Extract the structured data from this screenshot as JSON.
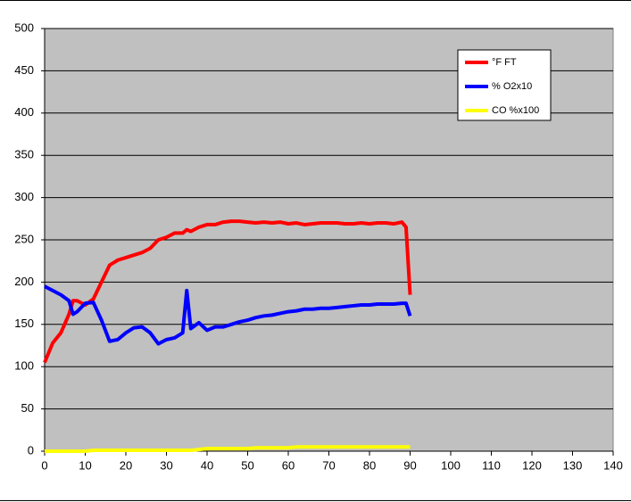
{
  "chart_data": {
    "type": "line",
    "x": [
      0,
      2,
      4,
      6,
      7,
      8,
      10,
      12,
      14,
      16,
      18,
      20,
      22,
      24,
      26,
      28,
      30,
      32,
      34,
      35,
      36,
      38,
      40,
      42,
      44,
      46,
      48,
      50,
      52,
      54,
      56,
      58,
      60,
      62,
      64,
      66,
      68,
      70,
      72,
      74,
      76,
      78,
      80,
      82,
      84,
      86,
      88,
      89,
      90
    ],
    "series": [
      {
        "name": "°F FT",
        "color": "#ff0000",
        "values": [
          105,
          128,
          140,
          162,
          178,
          178,
          173,
          180,
          200,
          220,
          226,
          229,
          232,
          235,
          240,
          250,
          253,
          258,
          258,
          262,
          260,
          265,
          268,
          268,
          271,
          272,
          272,
          271,
          270,
          271,
          270,
          271,
          269,
          270,
          268,
          269,
          270,
          270,
          270,
          269,
          269,
          270,
          269,
          270,
          270,
          269,
          271,
          265,
          185
        ]
      },
      {
        "name": "% O2x10",
        "color": "#0000ff",
        "values": [
          195,
          190,
          185,
          178,
          162,
          165,
          175,
          176,
          155,
          130,
          132,
          140,
          146,
          147,
          140,
          127,
          132,
          134,
          140,
          190,
          145,
          152,
          143,
          147,
          147,
          150,
          153,
          155,
          158,
          160,
          161,
          163,
          165,
          166,
          168,
          168,
          169,
          169,
          170,
          171,
          172,
          173,
          173,
          174,
          174,
          174,
          175,
          175,
          160
        ]
      },
      {
        "name": "CO %x100",
        "color": "#ffff00",
        "values": [
          0,
          0,
          0,
          0,
          0,
          0,
          0,
          1,
          1,
          1,
          1,
          1,
          1,
          1,
          1,
          1,
          1,
          1,
          1,
          1,
          1,
          2,
          3,
          3,
          3,
          3,
          3,
          3,
          4,
          4,
          4,
          4,
          4,
          5,
          5,
          5,
          5,
          5,
          5,
          5,
          5,
          5,
          5,
          5,
          5,
          5,
          5,
          5,
          5
        ]
      }
    ],
    "xlim": [
      0,
      140
    ],
    "xticks": [
      0,
      10,
      20,
      30,
      40,
      50,
      60,
      70,
      80,
      90,
      100,
      110,
      120,
      130,
      140
    ],
    "ylim": [
      0,
      500
    ],
    "yticks": [
      0,
      50,
      100,
      150,
      200,
      250,
      300,
      350,
      400,
      450,
      500
    ],
    "grid": true,
    "legend": "upper right"
  }
}
